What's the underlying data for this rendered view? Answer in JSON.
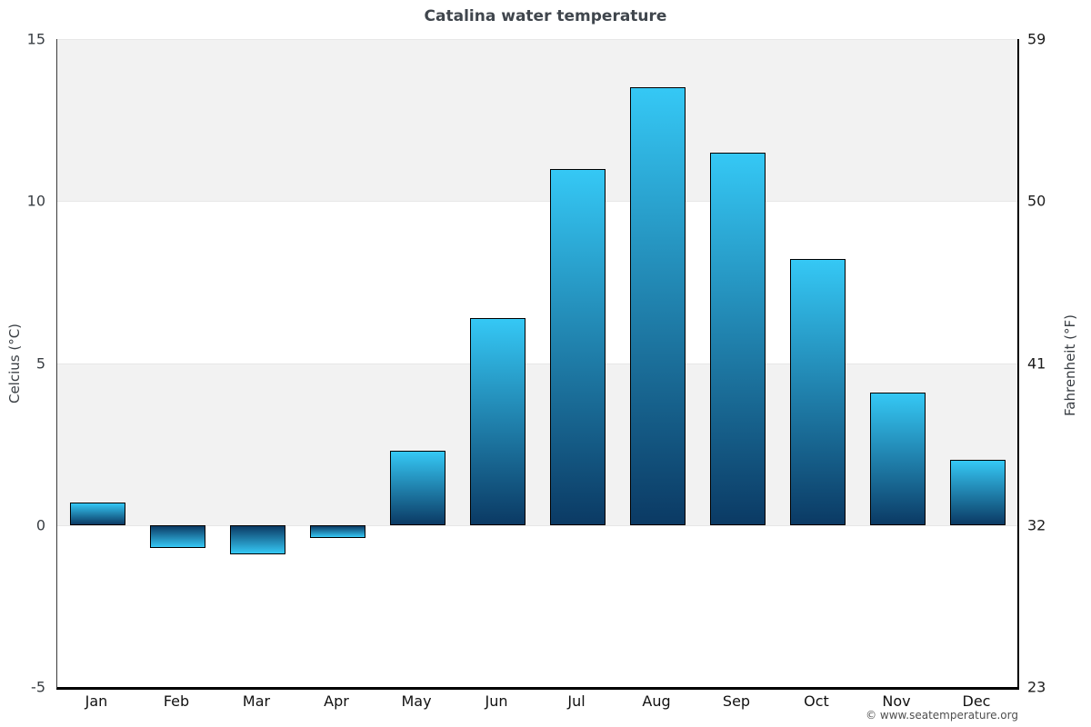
{
  "title": "Catalina water temperature",
  "watermark": "© www.seatemperature.org",
  "chart_data": {
    "type": "bar",
    "title": "Catalina water temperature",
    "categories": [
      "Jan",
      "Feb",
      "Mar",
      "Apr",
      "May",
      "Jun",
      "Jul",
      "Aug",
      "Sep",
      "Oct",
      "Nov",
      "Dec"
    ],
    "values": [
      0.7,
      -0.7,
      -0.9,
      -0.4,
      2.3,
      6.4,
      11.0,
      13.5,
      11.5,
      8.2,
      4.1,
      2.0
    ],
    "unit": "°C",
    "ylabel_left": "Celcius (°C)",
    "ylabel_right": "Fahrenheit (°F)",
    "yticks_celsius": [
      15,
      10,
      5,
      0,
      -5
    ],
    "yticks_fahrenheit": [
      59,
      50,
      41,
      32,
      23
    ],
    "ylim": [
      -5,
      15
    ],
    "xlabel": "",
    "legend": "none",
    "grid": "alternating horizontal bands",
    "colors": {
      "bar_light": "#35c8f5",
      "bar_dark": "#0b3a64",
      "bar_border": "#000000",
      "band_gray": "#f2f2f2",
      "band_white": "#ffffff",
      "gridline": "#e7e7e7",
      "title_text": "#40464d",
      "tick_text": "#3a3f44",
      "month_text": "#111111",
      "watermark_text": "#4f4f4f"
    }
  }
}
